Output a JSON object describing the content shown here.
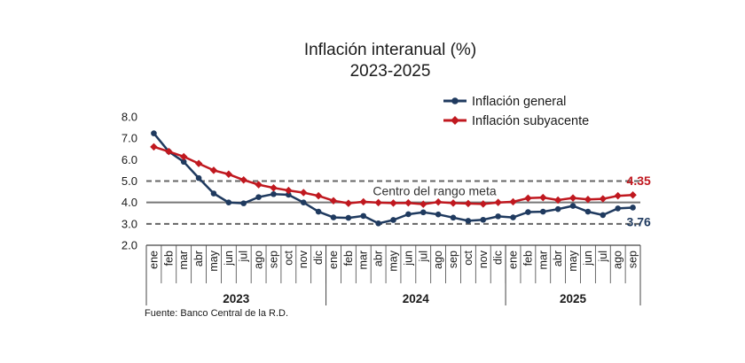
{
  "chart_data": {
    "type": "line",
    "title": "Inflación interanual (%)",
    "subtitle": "2023-2025",
    "source": "Fuente: Banco Central de la R.D.",
    "x": [
      "ene",
      "feb",
      "mar",
      "abr",
      "may",
      "jun",
      "jul",
      "ago",
      "sep",
      "oct",
      "nov",
      "dic",
      "ene",
      "feb",
      "mar",
      "abr",
      "may",
      "jun",
      "jul",
      "ago",
      "sep",
      "oct",
      "nov",
      "dic",
      "ene",
      "feb",
      "mar",
      "abr",
      "may",
      "jun",
      "jul",
      "ago",
      "sep"
    ],
    "year_groups": [
      {
        "label": "2023",
        "start": 0,
        "end": 11
      },
      {
        "label": "2024",
        "start": 12,
        "end": 23
      },
      {
        "label": "2025",
        "start": 24,
        "end": 32
      }
    ],
    "ylim": [
      2.0,
      8.0
    ],
    "yticks": [
      "2.0",
      "3.0",
      "4.0",
      "5.0",
      "6.0",
      "7.0",
      "8.0"
    ],
    "legend_position": "top-right",
    "series": [
      {
        "name": "Inflación general",
        "color": "#1f3a5f",
        "values": [
          7.23,
          6.38,
          5.9,
          5.14,
          4.42,
          4.0,
          3.96,
          4.25,
          4.39,
          4.36,
          4.0,
          3.57,
          3.3,
          3.28,
          3.37,
          3.02,
          3.18,
          3.45,
          3.54,
          3.44,
          3.29,
          3.14,
          3.19,
          3.35,
          3.3,
          3.55,
          3.57,
          3.69,
          3.84,
          3.57,
          3.41,
          3.72,
          3.76
        ],
        "end_label": "3.76"
      },
      {
        "name": "Inflación subyacente",
        "color": "#c0181f",
        "values": [
          6.6,
          6.38,
          6.14,
          5.82,
          5.5,
          5.32,
          5.05,
          4.83,
          4.68,
          4.56,
          4.46,
          4.31,
          4.08,
          3.96,
          4.03,
          3.99,
          3.97,
          3.98,
          3.92,
          4.02,
          3.97,
          3.95,
          3.93,
          4.0,
          4.03,
          4.2,
          4.23,
          4.11,
          4.21,
          4.14,
          4.17,
          4.31,
          4.35
        ],
        "end_label": "4.35"
      }
    ],
    "reference_lines": [
      {
        "value": 5.0,
        "style": "dashed",
        "color": "#666666"
      },
      {
        "value": 4.0,
        "style": "solid",
        "color": "#777777",
        "label": "Centro del rango meta"
      },
      {
        "value": 3.0,
        "style": "dashed",
        "color": "#666666"
      }
    ]
  }
}
